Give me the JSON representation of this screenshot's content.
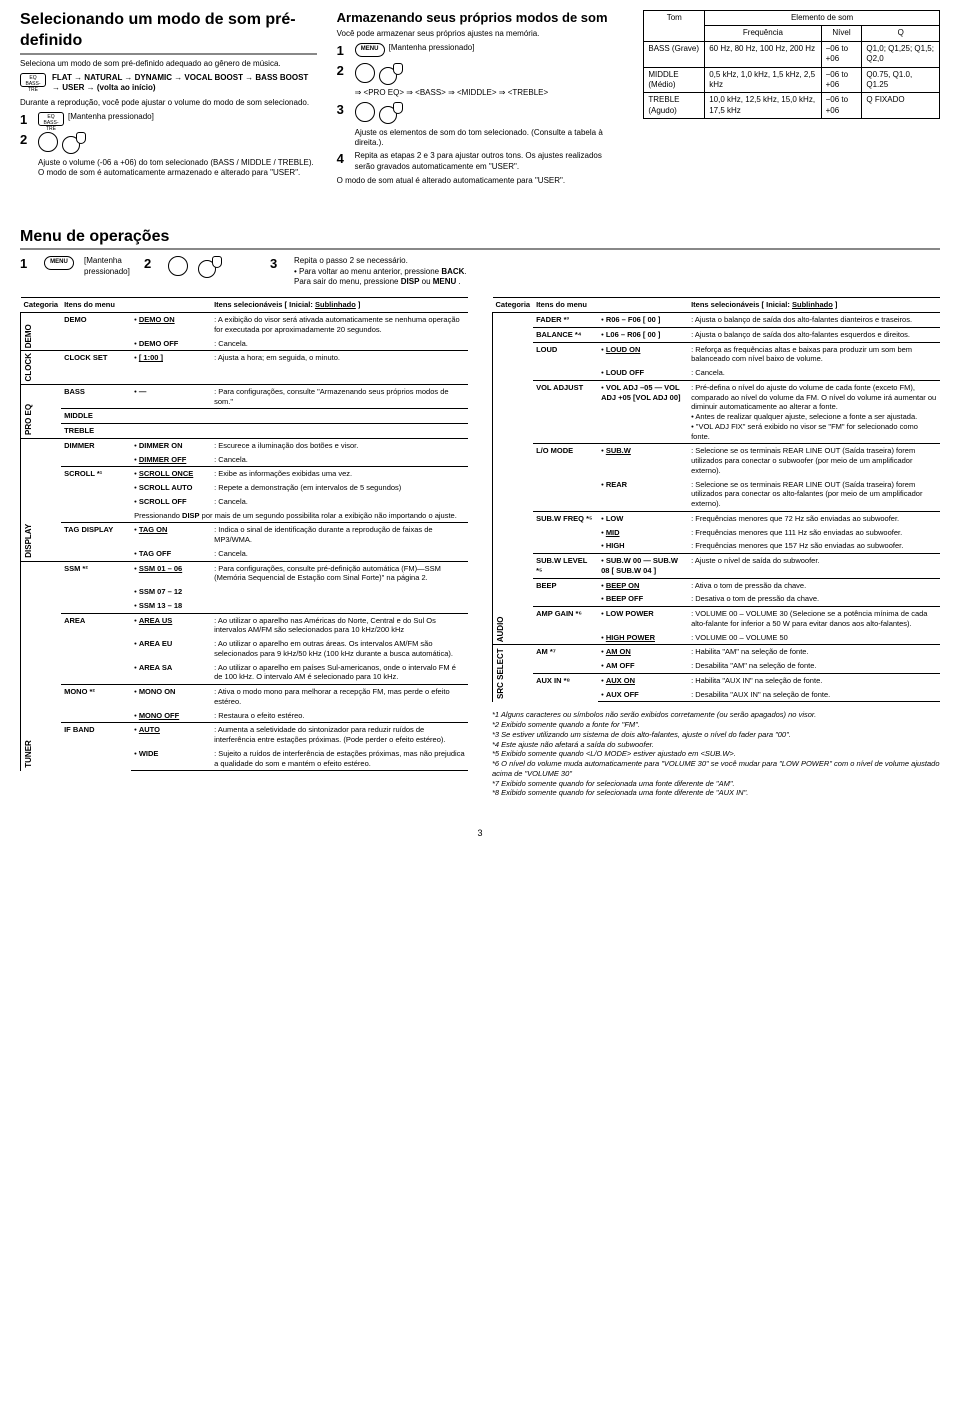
{
  "sec1": {
    "title": "Selecionando um modo de som pré-definido",
    "intro": "Seleciona um modo de som pré-definido adequado ao gênero de música.",
    "eqIcon1": "EQ",
    "eqIcon2": "BASS-TRE",
    "sequence": "FLAT → NATURAL → DYNAMIC → VOCAL BOOST → BASS BOOST → USER → (volta ao início)",
    "note": "Durante a reprodução, você pode ajustar o volume do modo de som selecionado.",
    "step1btn1": "EQ",
    "step1btn2": "BASS-TRE",
    "hold": "[Mantenha pressionado]",
    "adjustNote": "Ajuste o volume (-06 a +06) do tom selecionado (BASS / MIDDLE / TREBLE).",
    "autoSave": "O modo de som é automaticamente armazenado e alterado para \"USER\"."
  },
  "sec2": {
    "title": "Armazenando seus próprios modos de som",
    "intro": "Você pode armazenar seus próprios ajustes na memória.",
    "menuBtn": "MENU",
    "hold": "[Mantenha pressionado]",
    "seqLine": "⇒ <PRO EQ> ⇒ <BASS> ⇒ <MIDDLE> ⇒ <TREBLE>",
    "adjustNote": "Ajuste os elementos de som do tom selecionado. (Consulte a tabela à direita.).",
    "step4": "Repita as etapas 2 e 3 para ajustar outros tons. Os ajustes realizados serão gravados automaticamente em \"USER\".",
    "final": "O modo de som atual é alterado automaticamente para \"USER\"."
  },
  "toneTable": {
    "hTom": "Tom",
    "hElemento": "Elemento de som",
    "hFreq": "Frequência",
    "hNivel": "Nível",
    "hQ": "Q",
    "rows": [
      {
        "tom": "BASS (Grave)",
        "freq": "60 Hz, 80 Hz, 100 Hz, 200 Hz",
        "nivel": "−06 to +06",
        "q": "Q1,0; Q1,25; Q1,5; Q2,0"
      },
      {
        "tom": "MIDDLE (Médio)",
        "freq": "0,5 kHz, 1,0 kHz, 1,5 kHz, 2,5 kHz",
        "nivel": "−06 to +06",
        "q": "Q0.75, Q1.0, Q1.25"
      },
      {
        "tom": "TREBLE (Agudo)",
        "freq": "10,0 kHz, 12,5 kHz, 15,0 kHz, 17,5 kHz",
        "nivel": "−06 to +06",
        "q": "Q FIXADO"
      }
    ]
  },
  "menu": {
    "title": "Menu de operações",
    "step1btn": "MENU",
    "step1hold": "[Mantenha pressionado]",
    "step3a": "Repita o passo 2 se necessário.",
    "step3b": "• Para voltar ao menu anterior, pressione BACK.",
    "step3c": "Para sair do menu, pressione DISP ou MENU .",
    "hCategoria": "Categoria",
    "hItens": "Itens do menu",
    "hSelec": "Itens selecionáveis [ Inicial: ",
    "hSublinhado": "Sublinhado",
    "left": [
      {
        "cat": "DEMO",
        "rows": [
          {
            "item": "DEMO",
            "opts": [
              "DEMO ON",
              "DEMO OFF"
            ],
            "optsU": [
              true,
              false
            ],
            "desc": [
              ": A exibição do visor será ativada automaticamente se nenhuma operação for executada por aproximadamente 20 segundos.",
              ": Cancela."
            ]
          }
        ]
      },
      {
        "cat": "CLOCK",
        "rows": [
          {
            "item": "CLOCK SET",
            "opts": [
              "[ 1:00 ]"
            ],
            "optsU": [
              true
            ],
            "desc": [
              ": Ajusta a hora; em seguida, o minuto."
            ]
          }
        ]
      },
      {
        "cat": "PRO EQ",
        "rows": [
          {
            "item": "BASS",
            "opts": [
              "—"
            ],
            "optsU": [
              false
            ],
            "desc": [
              ": Para configurações, consulte \"Armazenando seus próprios modos de som.\""
            ]
          },
          {
            "item": "MIDDLE",
            "opts": [
              ""
            ],
            "optsU": [
              false
            ],
            "desc": [
              ""
            ]
          },
          {
            "item": "TREBLE",
            "opts": [
              ""
            ],
            "optsU": [
              false
            ],
            "desc": [
              ""
            ]
          }
        ]
      },
      {
        "cat": "DISPLAY",
        "rows": [
          {
            "item": "DIMMER",
            "opts": [
              "DIMMER ON",
              "DIMMER OFF"
            ],
            "optsU": [
              false,
              true
            ],
            "desc": [
              ": Escurece a iluminação dos botões e visor.",
              ": Cancela."
            ]
          },
          {
            "item": "SCROLL *¹",
            "opts": [
              "SCROLL ONCE",
              "SCROLL AUTO",
              "SCROLL OFF"
            ],
            "optsU": [
              true,
              false,
              false
            ],
            "desc": [
              ": Exibe as informações exibidas uma vez.",
              ": Repete a demonstração (em intervalos de 5 segundos)",
              ": Cancela."
            ],
            "extra": "Pressionando DISP por mais de um segundo possibilita rolar a exibição não importando o ajuste."
          },
          {
            "item": "TAG DISPLAY",
            "opts": [
              "TAG ON",
              "TAG OFF"
            ],
            "optsU": [
              true,
              false
            ],
            "desc": [
              ": Indica o sinal de identificação durante a reprodução de faixas de MP3/WMA.",
              ": Cancela."
            ]
          }
        ]
      },
      {
        "cat": "TUNER",
        "rows": [
          {
            "item": "SSM *²",
            "opts": [
              "SSM 01 – 06",
              "SSM 07 – 12",
              "SSM 13 – 18"
            ],
            "optsU": [
              true,
              false,
              false
            ],
            "desc": [
              ": Para configurações, consulte pré-definição automática (FM)—SSM (Memória Sequencial de Estação com Sinal Forte)\" na página 2.",
              "",
              ""
            ]
          },
          {
            "item": "AREA",
            "opts": [
              "AREA US",
              "AREA EU",
              "AREA SA"
            ],
            "optsU": [
              true,
              false,
              false
            ],
            "desc": [
              ": Ao utilizar o aparelho nas Américas do Norte, Central e do Sul Os intervalos AM/FM são selecionados para 10 kHz/200 kHz",
              ": Ao utilizar o aparelho em outras áreas. Os intervalos AM/FM são selecionados para 9 kHz/50 kHz (100 kHz durante a busca automática).",
              ": Ao utilizar o aparelho em países Sul-americanos, onde o intervalo FM é de 100 kHz. O intervalo AM é selecionado para 10 kHz."
            ]
          },
          {
            "item": "MONO *²",
            "opts": [
              "MONO ON",
              "MONO OFF"
            ],
            "optsU": [
              false,
              true
            ],
            "desc": [
              ": Ativa o modo mono para melhorar a recepção FM, mas perde o efeito estéreo.",
              ": Restaura o efeito estéreo."
            ]
          },
          {
            "item": "IF BAND",
            "opts": [
              "AUTO",
              "WIDE"
            ],
            "optsU": [
              true,
              false
            ],
            "desc": [
              ": Aumenta a seletividade do sintonizador para reduzir ruídos de interferência entre estações próximas. (Pode perder o efeito estéreo).",
              ": Sujeito a ruídos de interferência de estações próximas, mas não prejudica a qualidade do som e mantém o efeito estéreo."
            ]
          }
        ]
      }
    ],
    "right": [
      {
        "cat": "AUDIO",
        "rows": [
          {
            "item": "FADER *³",
            "opts": [
              "R06 – F06 [ 00 ]"
            ],
            "optsU": [
              false
            ],
            "desc": [
              ": Ajusta o balanço de saída dos alto-falantes dianteiros e traseiros."
            ]
          },
          {
            "item": "BALANCE *⁴",
            "opts": [
              "L06 – R06 [ 00 ]"
            ],
            "optsU": [
              false
            ],
            "desc": [
              ": Ajusta o balanço de saída dos alto-falantes esquerdos e direitos."
            ]
          },
          {
            "item": "LOUD",
            "opts": [
              "LOUD ON",
              "LOUD OFF"
            ],
            "optsU": [
              true,
              false
            ],
            "desc": [
              ": Reforça as frequências altas e baixas para produzir um som bem balanceado com nível baixo de volume.",
              ": Cancela."
            ]
          },
          {
            "item": "VOL ADJUST",
            "opts": [
              "VOL ADJ –05 — VOL ADJ +05 [VOL ADJ 00]"
            ],
            "optsU": [
              false
            ],
            "desc": [
              ": Pré-defina o nível do ajuste do volume de cada fonte (exceto FM), comparado ao nível do volume da FM. O nível do volume irá aumentar ou diminuir automaticamente ao alterar a fonte.\n• Antes de realizar qualquer ajuste, selecione a fonte a ser ajustada.\n• \"VOL ADJ FIX\" será exibido no visor se \"FM\" for selecionado como fonte."
            ]
          },
          {
            "item": "L/O MODE",
            "opts": [
              "SUB.W",
              "REAR"
            ],
            "optsU": [
              true,
              false
            ],
            "desc": [
              ": Selecione se os terminais REAR LINE OUT (Saída traseira) forem utilizados para conectar o subwoofer (por meio de um amplificador externo).",
              ": Selecione se os terminais REAR LINE OUT (Saída traseira) forem utilizados para conectar os alto-falantes (por meio de um amplificador externo)."
            ]
          },
          {
            "item": "SUB.W FREQ *⁵",
            "opts": [
              "LOW",
              "MID",
              "HIGH"
            ],
            "optsU": [
              false,
              true,
              false
            ],
            "desc": [
              ": Frequências menores que 72 Hz são enviadas ao subwoofer.",
              ": Frequências menores que 111 Hz são enviadas ao subwoofer.",
              ": Frequências menores que 157 Hz são enviadas ao subwoofer."
            ]
          },
          {
            "item": "SUB.W LEVEL *⁵",
            "opts": [
              "SUB.W 00 — SUB.W 08 [ SUB.W 04 ]"
            ],
            "optsU": [
              false
            ],
            "desc": [
              ": Ajuste o nível de saída do subwoofer."
            ]
          },
          {
            "item": "BEEP",
            "opts": [
              "BEEP ON",
              "BEEP OFF"
            ],
            "optsU": [
              true,
              false
            ],
            "desc": [
              ": Ativa o tom de pressão da chave.",
              ": Desativa o tom de pressão da chave."
            ]
          },
          {
            "item": "AMP GAIN *⁶",
            "opts": [
              "LOW POWER",
              "HIGH POWER"
            ],
            "optsU": [
              false,
              true
            ],
            "desc": [
              ": VOLUME 00 – VOLUME 30 (Selecione se a potência mínima de cada alto-falante for inferior a 50 W para evitar danos aos alto-falantes).",
              ": VOLUME 00 – VOLUME 50"
            ]
          }
        ]
      },
      {
        "cat": "SRC SELECT",
        "rows": [
          {
            "item": "AM *⁷",
            "opts": [
              "AM ON",
              "AM OFF"
            ],
            "optsU": [
              true,
              false
            ],
            "desc": [
              ": Habilita \"AM\" na seleção de fonte.",
              ": Desabilita \"AM\" na seleção de fonte."
            ]
          },
          {
            "item": "AUX IN *⁸",
            "opts": [
              "AUX ON",
              "AUX OFF"
            ],
            "optsU": [
              true,
              false
            ],
            "desc": [
              ": Habilita \"AUX IN\" na seleção de fonte.",
              ": Desabilita \"AUX IN\" na seleção de fonte."
            ]
          }
        ]
      }
    ],
    "footnotes": [
      "*1  Alguns caracteres ou símbolos não serão exibidos corretamente (ou serão apagados) no visor.",
      "*2  Exibido somente quando a fonte for \"FM\".",
      "*3  Se estiver utilizando um sistema de dois alto-falantes, ajuste o nível do fader para \"00\".",
      "*4  Este ajuste não afetará a saída do subwoofer.",
      "*5  Exibido somente quando <L/O MODE> estiver ajustado em <SUB.W>.",
      "*6  O nível do volume muda automaticamente para \"VOLUME 30\" se você mudar para \"LOW POWER\" com  o nível de volume ajustado acima de \"VOLUME 30\"",
      "*7  Exibido somente quando for selecionada uma fonte diferente de \"AM\".",
      "*8  Exibido somente quando for selecionada uma fonte diferente de \"AUX IN\"."
    ]
  },
  "pageNum": "3"
}
